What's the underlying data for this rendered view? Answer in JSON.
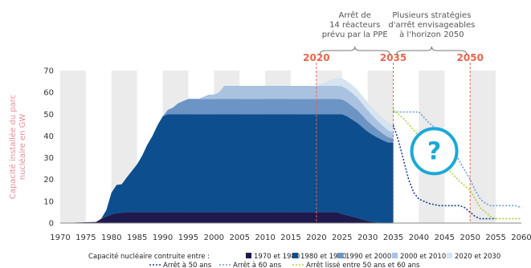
{
  "chart_data": {
    "type": "area",
    "ylabel_lines": [
      "Capacité installée du parc",
      "nucléaire en GW"
    ],
    "ylim": [
      0,
      70
    ],
    "xlim": [
      1970,
      2060
    ],
    "yticks": [
      0,
      10,
      20,
      30,
      40,
      50,
      60,
      70
    ],
    "xticks": [
      1970,
      1975,
      1980,
      1985,
      1990,
      1995,
      2000,
      2005,
      2010,
      2015,
      2020,
      2025,
      2030,
      2035,
      2040,
      2045,
      2050,
      2055,
      2060
    ],
    "grid": "alternating vertical bands every 5 years",
    "x": [
      1970,
      1977,
      1978,
      1979,
      1980,
      1981,
      1982,
      1983,
      1984,
      1985,
      1986,
      1987,
      1988,
      1989,
      1990,
      1991,
      1992,
      1993,
      1994,
      1995,
      1996,
      1997,
      1998,
      1999,
      2000,
      2001,
      2002,
      2003,
      2004,
      2005,
      2006,
      2007,
      2008,
      2009,
      2010,
      2011,
      2012,
      2013,
      2014,
      2015,
      2016,
      2017,
      2018,
      2019,
      2020,
      2021,
      2022,
      2023,
      2024,
      2025,
      2026,
      2027,
      2028,
      2029,
      2030,
      2031,
      2032,
      2033,
      2034,
      2035
    ],
    "series": [
      {
        "name": "1970 et 1980",
        "color": "#1f1a4e",
        "values": [
          0,
          0.5,
          2,
          3,
          4,
          4.5,
          4.8,
          5,
          5,
          5,
          5,
          5,
          5,
          5,
          5,
          5,
          5,
          5,
          5,
          5,
          5,
          5,
          5,
          5,
          5,
          5,
          5,
          5,
          5,
          5,
          5,
          5,
          5,
          5,
          5,
          5,
          5,
          5,
          5,
          5,
          5,
          5,
          5,
          5,
          5,
          5,
          5,
          5,
          5,
          4.2,
          3.6,
          3,
          2.4,
          1.6,
          1,
          0.5,
          0.2,
          0,
          0,
          0
        ]
      },
      {
        "name": "1980 et 1990",
        "color": "#0d4e8e",
        "values": [
          0,
          0,
          0,
          3,
          10,
          13,
          13,
          16,
          19,
          22,
          26,
          31,
          35,
          40,
          44,
          45,
          45,
          45,
          45,
          45,
          45,
          45,
          45,
          45,
          45,
          45,
          45,
          45,
          45,
          45,
          45,
          45,
          45,
          45,
          45,
          45,
          45,
          45,
          45,
          45,
          45,
          45,
          45,
          45,
          45,
          45,
          45,
          45,
          45,
          45.8,
          45.4,
          44.5,
          43.6,
          42.4,
          41,
          40,
          39,
          38,
          37,
          37
        ]
      },
      {
        "name": "1990 et 2000",
        "color": "#6c94c4",
        "values": [
          0,
          0,
          0,
          0,
          0,
          0,
          0,
          0,
          0,
          0,
          0,
          0,
          0,
          0,
          0,
          2,
          3,
          5,
          6,
          7,
          7,
          7,
          7,
          7,
          7,
          7,
          7,
          7,
          7,
          7,
          7,
          7,
          7,
          7,
          7,
          7,
          7,
          7,
          7,
          7,
          7,
          7,
          7,
          7,
          7,
          7,
          7,
          7,
          7,
          6.8,
          6.5,
          6.2,
          5.8,
          5.3,
          4.8,
          4.2,
          3.6,
          3,
          2.4,
          1.8
        ]
      },
      {
        "name": "2000 et 2010",
        "color": "#a9c2e0",
        "values": [
          0,
          0,
          0,
          0,
          0,
          0,
          0,
          0,
          0,
          0,
          0,
          0,
          0,
          0,
          0,
          0,
          0,
          0,
          0,
          0,
          0,
          0,
          1,
          2,
          2,
          3,
          6,
          6,
          6,
          6,
          6,
          6,
          6,
          6,
          6,
          6,
          6,
          6,
          6,
          6,
          6,
          6,
          6,
          6,
          6,
          6,
          6,
          6,
          6,
          6,
          6,
          6,
          5.8,
          5.4,
          5,
          4.5,
          4,
          3.6,
          3.2,
          2.8
        ]
      },
      {
        "name": "2020 et 2030",
        "color": "#d6e3f1",
        "values": [
          0,
          0,
          0,
          0,
          0,
          0,
          0,
          0,
          0,
          0,
          0,
          0,
          0,
          0,
          0,
          0,
          0,
          0,
          0,
          0,
          0,
          0,
          0,
          0,
          0,
          0,
          0,
          0,
          0,
          0,
          0,
          0,
          0,
          0,
          0,
          0,
          0,
          0,
          0,
          0,
          0,
          0,
          0,
          0,
          0,
          1,
          2,
          3,
          3.5,
          3.6,
          3.6,
          3.6,
          3.6,
          3.6,
          3.6,
          3.6,
          3.6,
          3.6,
          3.6,
          3.6
        ]
      }
    ],
    "scenarios": [
      {
        "name": "Arrêt à 50 ans",
        "color": "#1b3f8a",
        "dash": "2,2",
        "x": [
          2035,
          2036,
          2037,
          2038,
          2039,
          2040,
          2041,
          2042,
          2043,
          2044,
          2045,
          2046,
          2047,
          2048,
          2049,
          2050,
          2051,
          2052,
          2053,
          2054,
          2055
        ],
        "y": [
          45,
          38,
          29,
          20,
          14,
          11,
          10,
          9,
          8.5,
          8,
          8,
          8,
          8,
          8,
          7,
          5,
          3,
          2,
          2,
          2,
          2
        ]
      },
      {
        "name": "Arrêt à 60 ans",
        "color": "#6a9fd4",
        "dash": "2,2",
        "x": [
          2035,
          2040,
          2042,
          2044,
          2046,
          2048,
          2050,
          2051,
          2052,
          2053,
          2054,
          2055,
          2056,
          2057,
          2058,
          2059,
          2060
        ],
        "y": [
          51,
          51,
          46,
          42,
          37,
          28,
          20,
          15,
          11,
          9,
          8,
          8,
          8,
          8,
          8,
          8,
          7
        ]
      },
      {
        "name": "Arrêt lissé entre 50 ans et 60 ans",
        "color": "#b6cc3a",
        "dash": "2,2",
        "x": [
          2035,
          2037,
          2040,
          2042,
          2044,
          2046,
          2048,
          2050,
          2052,
          2054,
          2055,
          2056,
          2058,
          2060
        ],
        "y": [
          52,
          48,
          40,
          35,
          30,
          24,
          19,
          15,
          7,
          3,
          2,
          2,
          2,
          2
        ]
      }
    ],
    "milestones": [
      2020,
      2035,
      2050
    ],
    "annotations": [
      {
        "lines": [
          "Arrêt de",
          "14 réacteurs",
          "prévu par la PPE"
        ]
      },
      {
        "lines": [
          "Plusieurs stratégies",
          "d'arrêt envisageables",
          "à l'horizon 2050"
        ]
      }
    ],
    "unknown_marker": "?",
    "legend": {
      "title": "Capacité nucléaire contruite entre :",
      "area_items": [
        "1970 et 1980",
        "1980 et 1990",
        "1990 et 2000",
        "2000 et 2010",
        "2020 et 2030"
      ],
      "line_items": [
        "Arrêt à 50 ans",
        "Arrêt à 60 ans",
        "Arrêt lissé entre 50 ans et 60 ans"
      ]
    },
    "colors": {
      "band": "#ebebeb",
      "milestone_line": "#e8664d",
      "question_circle": "#1ba9d6"
    }
  }
}
